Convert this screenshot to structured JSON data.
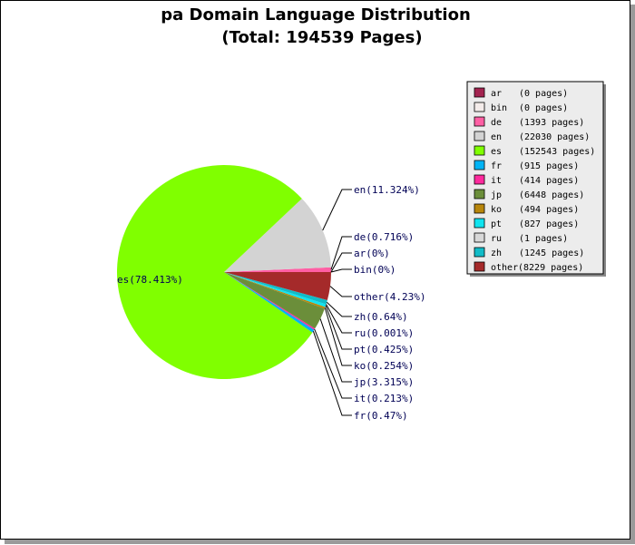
{
  "chart_data": {
    "type": "pie",
    "title": "pa Domain Language Distribution",
    "subtitle": "(Total: 194539 Pages)",
    "legend_position": "right",
    "slices": [
      {
        "code": "ar",
        "pages_label": "(0 pages)",
        "pages": 0,
        "label": "ar(0%)",
        "percent": 0,
        "color": "#a3234f"
      },
      {
        "code": "bin",
        "pages_label": "(0 pages)",
        "pages": 0,
        "label": "bin(0%)",
        "percent": 0,
        "color": "#f4ecea"
      },
      {
        "code": "de",
        "pages_label": "(1393 pages)",
        "pages": 1393,
        "label": "de(0.716%)",
        "percent": 0.716,
        "color": "#ff5fa4"
      },
      {
        "code": "en",
        "pages_label": "(22030 pages)",
        "pages": 22030,
        "label": "en(11.324%)",
        "percent": 11.324,
        "color": "#d3d3d3"
      },
      {
        "code": "es",
        "pages_label": "(152543 pages)",
        "pages": 152543,
        "label": "es(78.413%)",
        "percent": 78.413,
        "color": "#80ff00"
      },
      {
        "code": "fr",
        "pages_label": "(915 pages)",
        "pages": 915,
        "label": "fr(0.47%)",
        "percent": 0.47,
        "color": "#00b3f5"
      },
      {
        "code": "it",
        "pages_label": "(414 pages)",
        "pages": 414,
        "label": "it(0.213%)",
        "percent": 0.213,
        "color": "#ff2a9d"
      },
      {
        "code": "jp",
        "pages_label": "(6448 pages)",
        "pages": 6448,
        "label": "jp(3.315%)",
        "percent": 3.315,
        "color": "#6b8e3a"
      },
      {
        "code": "ko",
        "pages_label": "(494 pages)",
        "pages": 494,
        "label": "ko(0.254%)",
        "percent": 0.254,
        "color": "#b8860b"
      },
      {
        "code": "pt",
        "pages_label": "(827 pages)",
        "pages": 827,
        "label": "pt(0.425%)",
        "percent": 0.425,
        "color": "#10e4f0"
      },
      {
        "code": "ru",
        "pages_label": "(1 pages)",
        "pages": 1,
        "label": "ru(0.001%)",
        "percent": 0.001,
        "color": "#d8d8d8"
      },
      {
        "code": "zh",
        "pages_label": "(1245 pages)",
        "pages": 1245,
        "label": "zh(0.64%)",
        "percent": 0.64,
        "color": "#12bcc8"
      },
      {
        "code": "other",
        "pages_label": "(8229 pages)",
        "pages": 8229,
        "label": "other(4.23%)",
        "percent": 4.23,
        "color": "#a52a2a"
      }
    ]
  }
}
